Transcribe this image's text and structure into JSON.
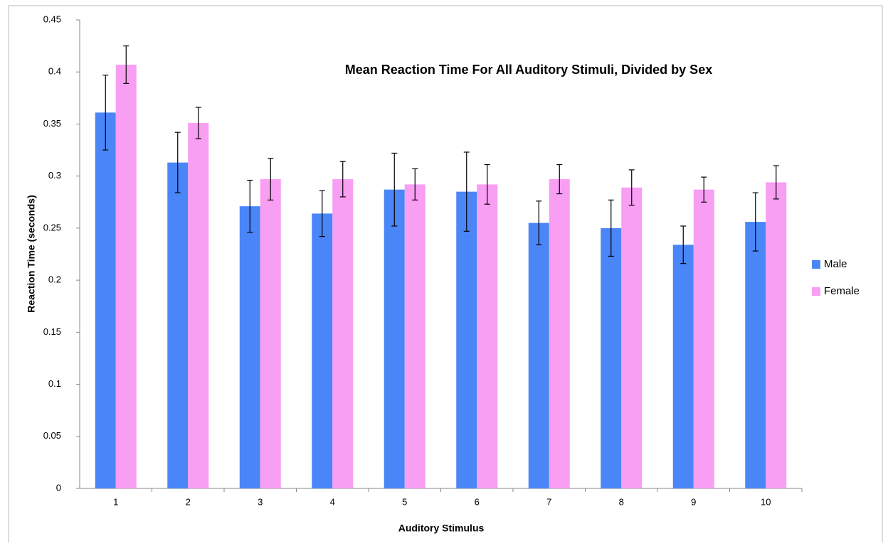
{
  "chart_data": {
    "type": "bar",
    "title": "Mean Reaction Time For All Auditory Stimuli, Divided by Sex",
    "x_label": "Auditory Stimulus",
    "y_label": "Reaction Time (seconds)",
    "categories": [
      "1",
      "2",
      "3",
      "4",
      "5",
      "6",
      "7",
      "8",
      "9",
      "10"
    ],
    "series": [
      {
        "name": "Male",
        "color": "#4a86f7",
        "values": [
          0.361,
          0.313,
          0.271,
          0.264,
          0.287,
          0.285,
          0.255,
          0.25,
          0.234,
          0.256
        ],
        "errors": [
          0.036,
          0.029,
          0.025,
          0.022,
          0.035,
          0.038,
          0.021,
          0.027,
          0.018,
          0.028
        ]
      },
      {
        "name": "Female",
        "color": "#f89ef3",
        "values": [
          0.407,
          0.351,
          0.297,
          0.297,
          0.292,
          0.292,
          0.297,
          0.289,
          0.287,
          0.294
        ],
        "errors": [
          0.018,
          0.015,
          0.02,
          0.017,
          0.015,
          0.019,
          0.014,
          0.017,
          0.012,
          0.016
        ]
      }
    ],
    "ylim": [
      0,
      0.45
    ],
    "yticks": [
      0,
      0.05,
      0.1,
      0.15,
      0.2,
      0.25,
      0.3,
      0.35,
      0.4,
      0.45
    ],
    "grid": false,
    "legend": "right"
  }
}
